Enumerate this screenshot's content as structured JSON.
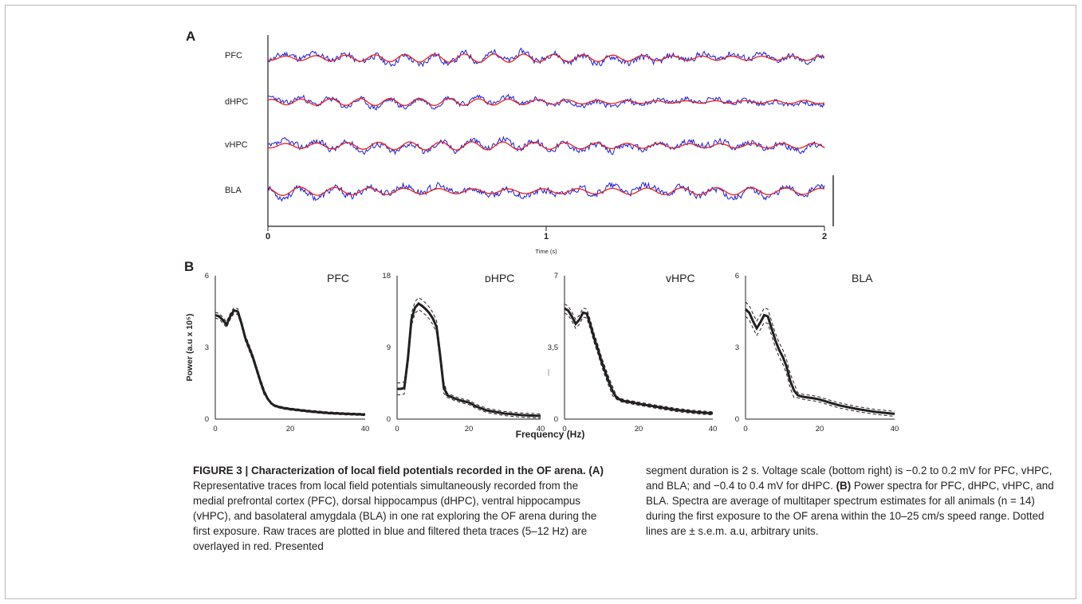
{
  "panel_a": {
    "letter": "A",
    "traces": [
      {
        "label": "PFC",
        "seed": 11
      },
      {
        "label": "dHPC",
        "seed": 23
      },
      {
        "label": "vHPC",
        "seed": 37
      },
      {
        "label": "BLA",
        "seed": 53
      }
    ],
    "x_ticks": [
      "0",
      "1",
      "2"
    ],
    "xlabel": "Time (s)",
    "raw_color": "#1c1cd6",
    "filtered_color": "#e8231a"
  },
  "panel_b": {
    "letter": "B",
    "ylabel": "Power (a.u x 10⁵)",
    "xlabel": "Frequency (Hz)"
  },
  "chart_data": [
    {
      "type": "line",
      "title": "PFC",
      "x_ticks": [
        "0",
        "20",
        "40"
      ],
      "y_ticks": [
        "0",
        "3",
        "6"
      ],
      "xlim": [
        0,
        40
      ],
      "ylim": [
        0,
        6
      ],
      "x": [
        0,
        1,
        2,
        3,
        4,
        5,
        6,
        7,
        8,
        9,
        10,
        11,
        12,
        13,
        14,
        15,
        16,
        18,
        20,
        25,
        30,
        35,
        40
      ],
      "series": [
        {
          "values": [
            4.35,
            4.3,
            4.15,
            3.95,
            4.3,
            4.55,
            4.5,
            4.0,
            3.4,
            3.0,
            2.6,
            2.1,
            1.6,
            1.15,
            0.85,
            0.65,
            0.55,
            0.47,
            0.42,
            0.33,
            0.26,
            0.22,
            0.19
          ]
        }
      ],
      "sem": 0.12
    },
    {
      "type": "line",
      "title": "ᴅHPC",
      "x_ticks": [
        "0",
        "20",
        "40"
      ],
      "y_ticks": [
        "0",
        "9",
        "18"
      ],
      "xlim": [
        0,
        40
      ],
      "ylim": [
        0,
        18
      ],
      "x": [
        0,
        1,
        2,
        3,
        4,
        5,
        6,
        7,
        8,
        9,
        10,
        11,
        12,
        13,
        14,
        16,
        18,
        20,
        22,
        25,
        30,
        35,
        40
      ],
      "series": [
        {
          "values": [
            3.8,
            3.8,
            3.9,
            7.5,
            12.5,
            14.0,
            14.5,
            14.2,
            13.8,
            13.3,
            12.6,
            11.6,
            8.0,
            4.0,
            3.0,
            2.6,
            2.3,
            2.1,
            1.6,
            1.1,
            0.7,
            0.5,
            0.4
          ]
        }
      ],
      "sem": 0.75
    },
    {
      "type": "line",
      "title": "vHPC",
      "x_ticks": [
        "0",
        "20",
        "40"
      ],
      "y_ticks": [
        "0",
        "3,5",
        "7"
      ],
      "xlim": [
        0,
        40
      ],
      "ylim": [
        0,
        7
      ],
      "x": [
        0,
        1,
        2,
        3,
        4,
        5,
        6,
        7,
        8,
        9,
        10,
        11,
        12,
        13,
        14,
        15,
        16,
        18,
        20,
        25,
        30,
        35,
        40
      ],
      "series": [
        {
          "values": [
            5.4,
            5.3,
            5.0,
            4.65,
            4.85,
            5.2,
            5.15,
            4.6,
            3.95,
            3.4,
            2.8,
            2.3,
            1.8,
            1.35,
            1.05,
            0.95,
            0.88,
            0.82,
            0.75,
            0.6,
            0.45,
            0.35,
            0.28
          ]
        }
      ],
      "sem": 0.22
    },
    {
      "type": "line",
      "title": "BLA",
      "x_ticks": [
        "0",
        "20",
        "40"
      ],
      "y_ticks": [
        "0",
        "3",
        "6"
      ],
      "xlim": [
        0,
        40
      ],
      "ylim": [
        0,
        6
      ],
      "x": [
        0,
        1,
        2,
        3,
        4,
        5,
        6,
        7,
        8,
        9,
        10,
        11,
        12,
        13,
        14,
        15,
        16,
        18,
        20,
        22,
        25,
        30,
        35,
        40
      ],
      "series": [
        {
          "values": [
            4.6,
            4.45,
            4.1,
            3.8,
            4.05,
            4.35,
            4.3,
            3.8,
            3.3,
            2.9,
            2.6,
            2.2,
            1.6,
            1.2,
            1.0,
            0.95,
            0.92,
            0.88,
            0.82,
            0.72,
            0.58,
            0.42,
            0.3,
            0.22
          ]
        }
      ],
      "sem": 0.3
    }
  ],
  "caption": {
    "title": "FIGURE 3 | Characterization of local field potentials recorded in the OF arena.",
    "label_a": "(A)",
    "text_a": "Representative traces from local field potentials simultaneously recorded from the medial prefrontal cortex (PFC), dorsal hippocampus (dHPC), ventral hippocampus (vHPC), and basolateral amygdala (BLA) in one rat exploring the OF arena during the first exposure. Raw traces are plotted in blue and filtered theta traces (5–12 Hz) are overlayed in red. Presented segment duration is 2 s. Voltage scale (bottom right) is −0.2 to 0.2 mV for PFC, vHPC, and BLA; and −0.4 to 0.4 mV for dHPC.",
    "label_b": "(B)",
    "text_b": "Power spectra for PFC, dHPC, vHPC, and BLA. Spectra are average of multitaper spectrum estimates for all animals (n = 14) during the first exposure to the OF arena within the 10–25 cm/s speed range. Dotted lines are ± s.e.m. a.u, arbitrary units."
  }
}
